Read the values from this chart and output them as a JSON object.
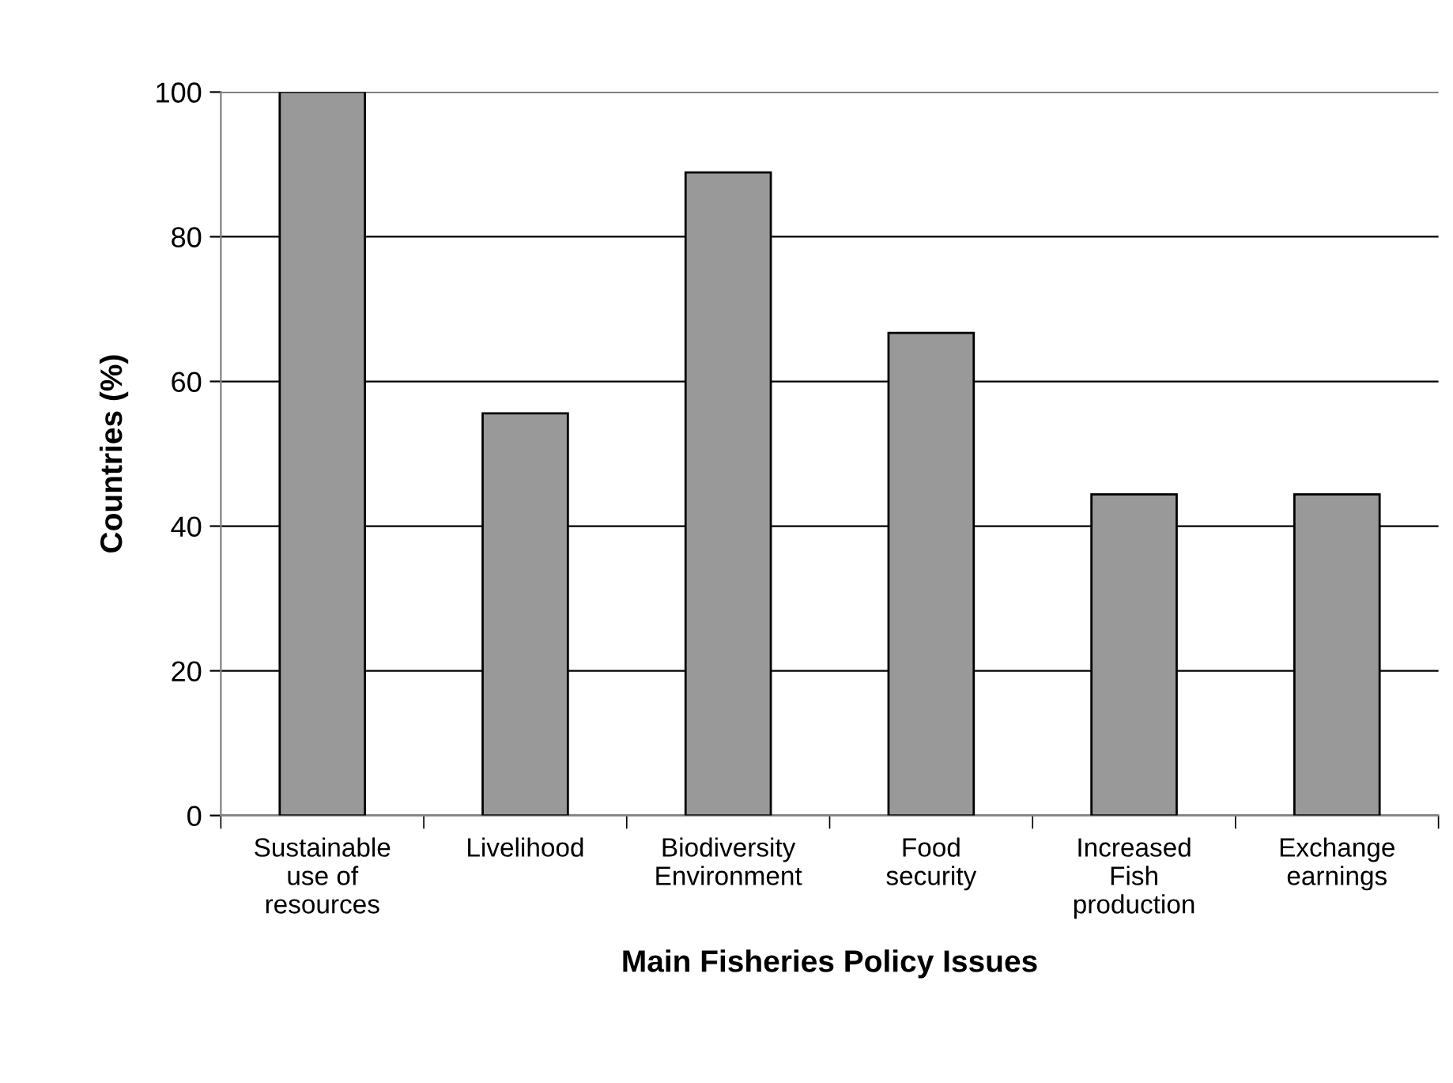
{
  "chart_data": {
    "type": "bar",
    "xlabel": "Main Fisheries Policy Issues",
    "ylabel": "Countries (%)",
    "categories": [
      "Sustainable\nuse of\nresources",
      "Livelihood",
      "Biodiversity\nEnvironment",
      "Food\nsecurity",
      "Increased\nFish\nproduction",
      "Exchange\nearnings"
    ],
    "values": [
      100,
      55.6,
      88.9,
      66.7,
      44.4,
      44.4
    ],
    "color": "#999999",
    "ylim": [
      0,
      100
    ],
    "yticks": [
      0,
      20,
      40,
      60,
      80,
      100
    ],
    "grid": "y",
    "legend": false
  }
}
